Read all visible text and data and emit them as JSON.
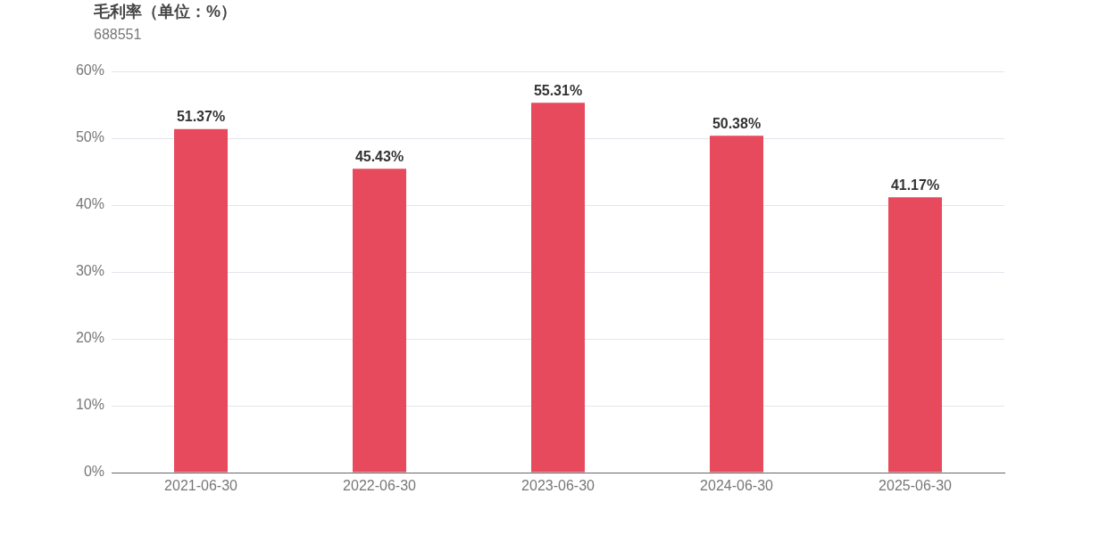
{
  "chart_data": {
    "type": "bar",
    "title": "毛利率（单位：%）",
    "subtitle": "688551",
    "categories": [
      "2021-06-30",
      "2022-06-30",
      "2023-06-30",
      "2024-06-30",
      "2025-06-30"
    ],
    "values": [
      51.37,
      45.43,
      55.31,
      50.38,
      41.17
    ],
    "value_labels": [
      "51.37%",
      "45.43%",
      "55.31%",
      "50.38%",
      "41.17%"
    ],
    "color": "#e64a5c",
    "ylim": [
      0,
      60
    ],
    "yticks": [
      {
        "value": 0,
        "label": "0%"
      },
      {
        "value": 10,
        "label": "10%"
      },
      {
        "value": 20,
        "label": "20%"
      },
      {
        "value": 30,
        "label": "30%"
      },
      {
        "value": 40,
        "label": "40%"
      },
      {
        "value": 50,
        "label": "50%"
      },
      {
        "value": 60,
        "label": "60%"
      }
    ],
    "grid": "y",
    "legend": false
  }
}
